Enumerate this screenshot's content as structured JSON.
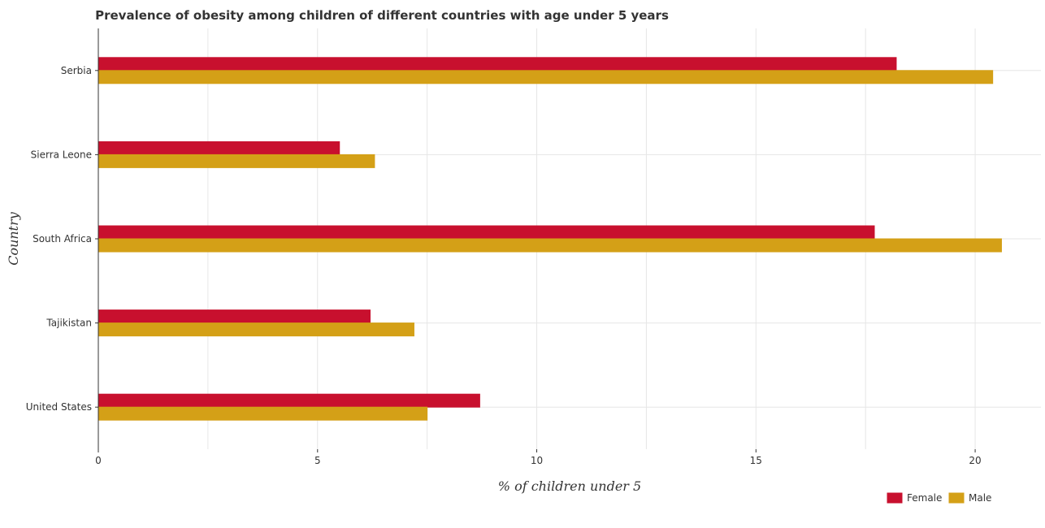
{
  "chart_data": {
    "type": "bar",
    "orientation": "horizontal",
    "title": "Prevalence of obesity among children of different countries with age under 5 years",
    "xlabel": "% of children under 5",
    "ylabel": "Country",
    "categories": [
      "Serbia",
      "Sierra Leone",
      "South Africa",
      "Tajikistan",
      "United States"
    ],
    "series": [
      {
        "name": "Female",
        "color": "#c8102e",
        "values": [
          18.2,
          5.5,
          17.7,
          6.2,
          8.7
        ]
      },
      {
        "name": "Male",
        "color": "#d4a017",
        "values": [
          20.4,
          6.3,
          20.6,
          7.2,
          7.5
        ]
      }
    ],
    "xlim": [
      0,
      21.5
    ],
    "xticks": [
      0,
      5,
      10,
      15,
      20
    ],
    "xtick_labels": [
      "0",
      "5",
      "10",
      "15",
      "20"
    ],
    "grid": true,
    "legend_position": "bottom-right"
  }
}
